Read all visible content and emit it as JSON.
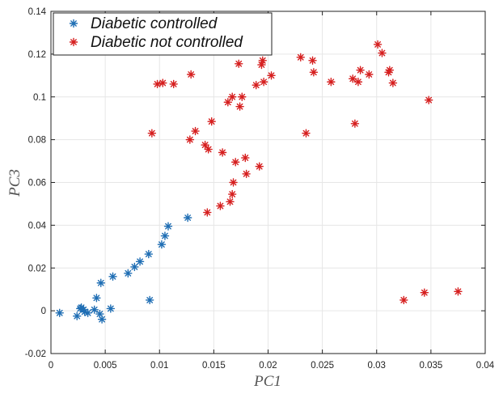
{
  "chart_data": {
    "type": "scatter",
    "title": "",
    "xlabel": "PC1",
    "ylabel": "PC3",
    "xlim": [
      0,
      0.04
    ],
    "ylim": [
      -0.02,
      0.14
    ],
    "xticks": [
      "0",
      "0.005",
      "0.01",
      "0.015",
      "0.02",
      "0.025",
      "0.03",
      "0.035",
      "0.04"
    ],
    "yticks": [
      "-0.02",
      "0",
      "0.02",
      "0.04",
      "0.06",
      "0.08",
      "0.1",
      "0.12",
      "0.14"
    ],
    "grid": true,
    "legend_position": "top-left",
    "marker": "asterisk",
    "series": [
      {
        "name": "Diabetic controlled",
        "color": "#1f6eb4",
        "points": [
          [
            0.0008,
            -0.001
          ],
          [
            0.0024,
            -0.0025
          ],
          [
            0.0027,
            0.001
          ],
          [
            0.0028,
            0.0015
          ],
          [
            0.003,
            0.0005
          ],
          [
            0.0031,
            -0.0005
          ],
          [
            0.0034,
            -0.001
          ],
          [
            0.004,
            0.0005
          ],
          [
            0.0042,
            0.006
          ],
          [
            0.0045,
            -0.0015
          ],
          [
            0.0046,
            0.013
          ],
          [
            0.0047,
            -0.004
          ],
          [
            0.0055,
            0.001
          ],
          [
            0.0057,
            0.016
          ],
          [
            0.0071,
            0.0175
          ],
          [
            0.0077,
            0.0205
          ],
          [
            0.0082,
            0.023
          ],
          [
            0.009,
            0.0265
          ],
          [
            0.0091,
            0.005
          ],
          [
            0.0102,
            0.031
          ],
          [
            0.0105,
            0.035
          ],
          [
            0.0108,
            0.0395
          ],
          [
            0.0126,
            0.0435
          ]
        ]
      },
      {
        "name": "Diabetic not controlled",
        "color": "#d61f1f",
        "points": [
          [
            0.0093,
            0.083
          ],
          [
            0.0098,
            0.106
          ],
          [
            0.0103,
            0.1065
          ],
          [
            0.0113,
            0.106
          ],
          [
            0.0129,
            0.1105
          ],
          [
            0.0128,
            0.08
          ],
          [
            0.0133,
            0.084
          ],
          [
            0.0142,
            0.0775
          ],
          [
            0.0145,
            0.0755
          ],
          [
            0.0148,
            0.0885
          ],
          [
            0.0144,
            0.046
          ],
          [
            0.0156,
            0.049
          ],
          [
            0.0158,
            0.074
          ],
          [
            0.0163,
            0.0975
          ],
          [
            0.0165,
            0.051
          ],
          [
            0.0167,
            0.0545
          ],
          [
            0.0168,
            0.06
          ],
          [
            0.0167,
            0.1
          ],
          [
            0.017,
            0.0695
          ],
          [
            0.0173,
            0.1155
          ],
          [
            0.0174,
            0.0955
          ],
          [
            0.0176,
            0.1
          ],
          [
            0.0179,
            0.0715
          ],
          [
            0.018,
            0.064
          ],
          [
            0.0189,
            0.1055
          ],
          [
            0.0192,
            0.0675
          ],
          [
            0.0194,
            0.115
          ],
          [
            0.0195,
            0.117
          ],
          [
            0.0196,
            0.107
          ],
          [
            0.0203,
            0.11
          ],
          [
            0.023,
            0.1185
          ],
          [
            0.0235,
            0.083
          ],
          [
            0.0241,
            0.117
          ],
          [
            0.0242,
            0.1115
          ],
          [
            0.0258,
            0.107
          ],
          [
            0.0278,
            0.1085
          ],
          [
            0.028,
            0.0875
          ],
          [
            0.0283,
            0.107
          ],
          [
            0.0285,
            0.1125
          ],
          [
            0.0293,
            0.1105
          ],
          [
            0.0301,
            0.1245
          ],
          [
            0.0305,
            0.1205
          ],
          [
            0.0311,
            0.1115
          ],
          [
            0.0312,
            0.1125
          ],
          [
            0.0315,
            0.1065
          ],
          [
            0.0325,
            0.005
          ],
          [
            0.0344,
            0.0085
          ],
          [
            0.0348,
            0.0985
          ],
          [
            0.0375,
            0.009
          ]
        ]
      }
    ]
  }
}
